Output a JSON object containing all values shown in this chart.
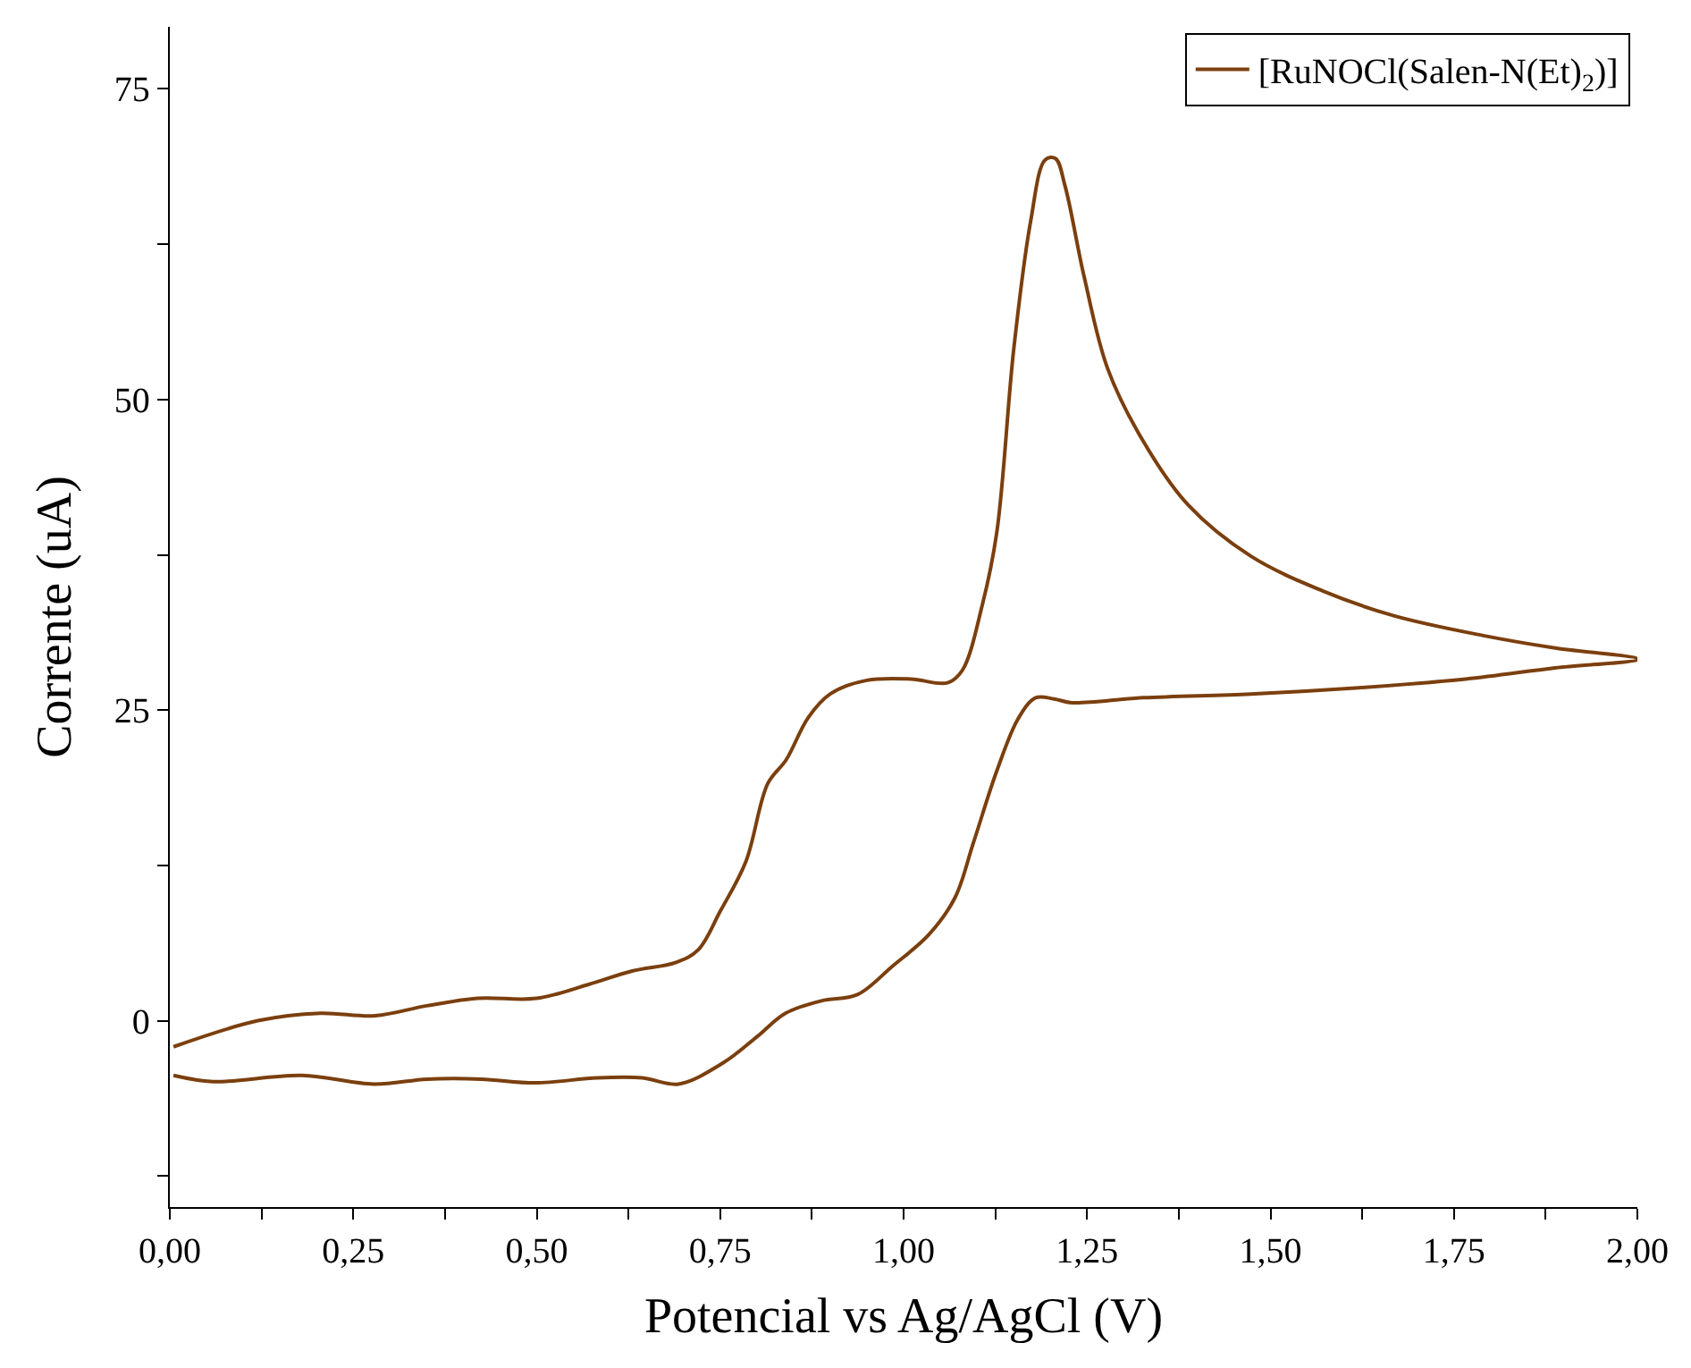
{
  "chart_data": {
    "type": "line",
    "xlabel": "Potencial vs Ag/AgCl (V)",
    "ylabel": "Corrente (uA)",
    "series": [
      {
        "name": "[RuNOCl(Salen-N(Et)$_{2}$)]",
        "color": "#7b3f0e",
        "x": [
          0.005,
          0.12,
          0.205,
          0.28,
          0.35,
          0.42,
          0.5,
          0.57,
          0.63,
          0.69,
          0.72,
          0.75,
          0.785,
          0.815,
          0.84,
          0.87,
          0.9,
          0.95,
          1.01,
          1.06,
          1.08,
          1.107,
          1.127,
          1.15,
          1.173,
          1.193,
          1.207,
          1.22,
          1.246,
          1.278,
          1.327,
          1.388,
          1.473,
          1.571,
          1.668,
          1.79,
          1.888,
          2.0,
          1.888,
          1.766,
          1.62,
          1.473,
          1.327,
          1.229,
          1.205,
          1.18,
          1.156,
          1.127,
          1.095,
          1.07,
          1.034,
          0.985,
          0.937,
          0.888,
          0.839,
          0.8,
          0.754,
          0.693,
          0.644,
          0.583,
          0.498,
          0.424,
          0.351,
          0.278,
          0.18,
          0.059,
          0.005
        ],
        "values": [
          -2.1,
          0,
          0.6,
          0.4,
          1.2,
          1.8,
          1.8,
          2.9,
          4.0,
          4.7,
          5.7,
          8.8,
          12.8,
          19.1,
          21,
          24.4,
          26.3,
          27.4,
          27.5,
          27.2,
          28.2,
          33.4,
          39.3,
          54,
          64.3,
          69.3,
          69.4,
          67.2,
          59.9,
          52.5,
          46.6,
          41.5,
          37.4,
          34.6,
          32.6,
          31,
          30,
          29.1,
          28.4,
          27.5,
          26.8,
          26.3,
          26,
          25.6,
          25.9,
          26,
          24.3,
          20.1,
          14.3,
          9.9,
          6.9,
          4.4,
          2.1,
          1.6,
          0.6,
          -1.3,
          -3.4,
          -5.1,
          -4.6,
          -4.6,
          -5,
          -4.7,
          -4.7,
          -5.1,
          -4.4,
          -4.9,
          -4.4
        ]
      }
    ],
    "xlim": [
      0,
      2
    ],
    "ylim": [
      -15,
      80
    ],
    "xticks": [
      {
        "value": 0,
        "label": "0,00"
      },
      {
        "value": 0.125,
        "label": null
      },
      {
        "value": 0.25,
        "label": "0,25"
      },
      {
        "value": 0.375,
        "label": null
      },
      {
        "value": 0.5,
        "label": "0,50"
      },
      {
        "value": 0.625,
        "label": null
      },
      {
        "value": 0.75,
        "label": "0,75"
      },
      {
        "value": 0.875,
        "label": null
      },
      {
        "value": 1,
        "label": "1,00"
      },
      {
        "value": 1.125,
        "label": null
      },
      {
        "value": 1.25,
        "label": "1,25"
      },
      {
        "value": 1.375,
        "label": null
      },
      {
        "value": 1.5,
        "label": "1,50"
      },
      {
        "value": 1.625,
        "label": null
      },
      {
        "value": 1.75,
        "label": "1,75"
      },
      {
        "value": 1.875,
        "label": null
      },
      {
        "value": 2,
        "label": "2,00"
      }
    ],
    "yticks": [
      {
        "value": -12.5,
        "label": null
      },
      0,
      {
        "value": 12.5,
        "label": null
      },
      25,
      {
        "value": 37.5,
        "label": null
      },
      50,
      {
        "value": 62.5,
        "label": null
      },
      75
    ],
    "legend": "top right",
    "marker": "none",
    "line_style": "solid"
  }
}
